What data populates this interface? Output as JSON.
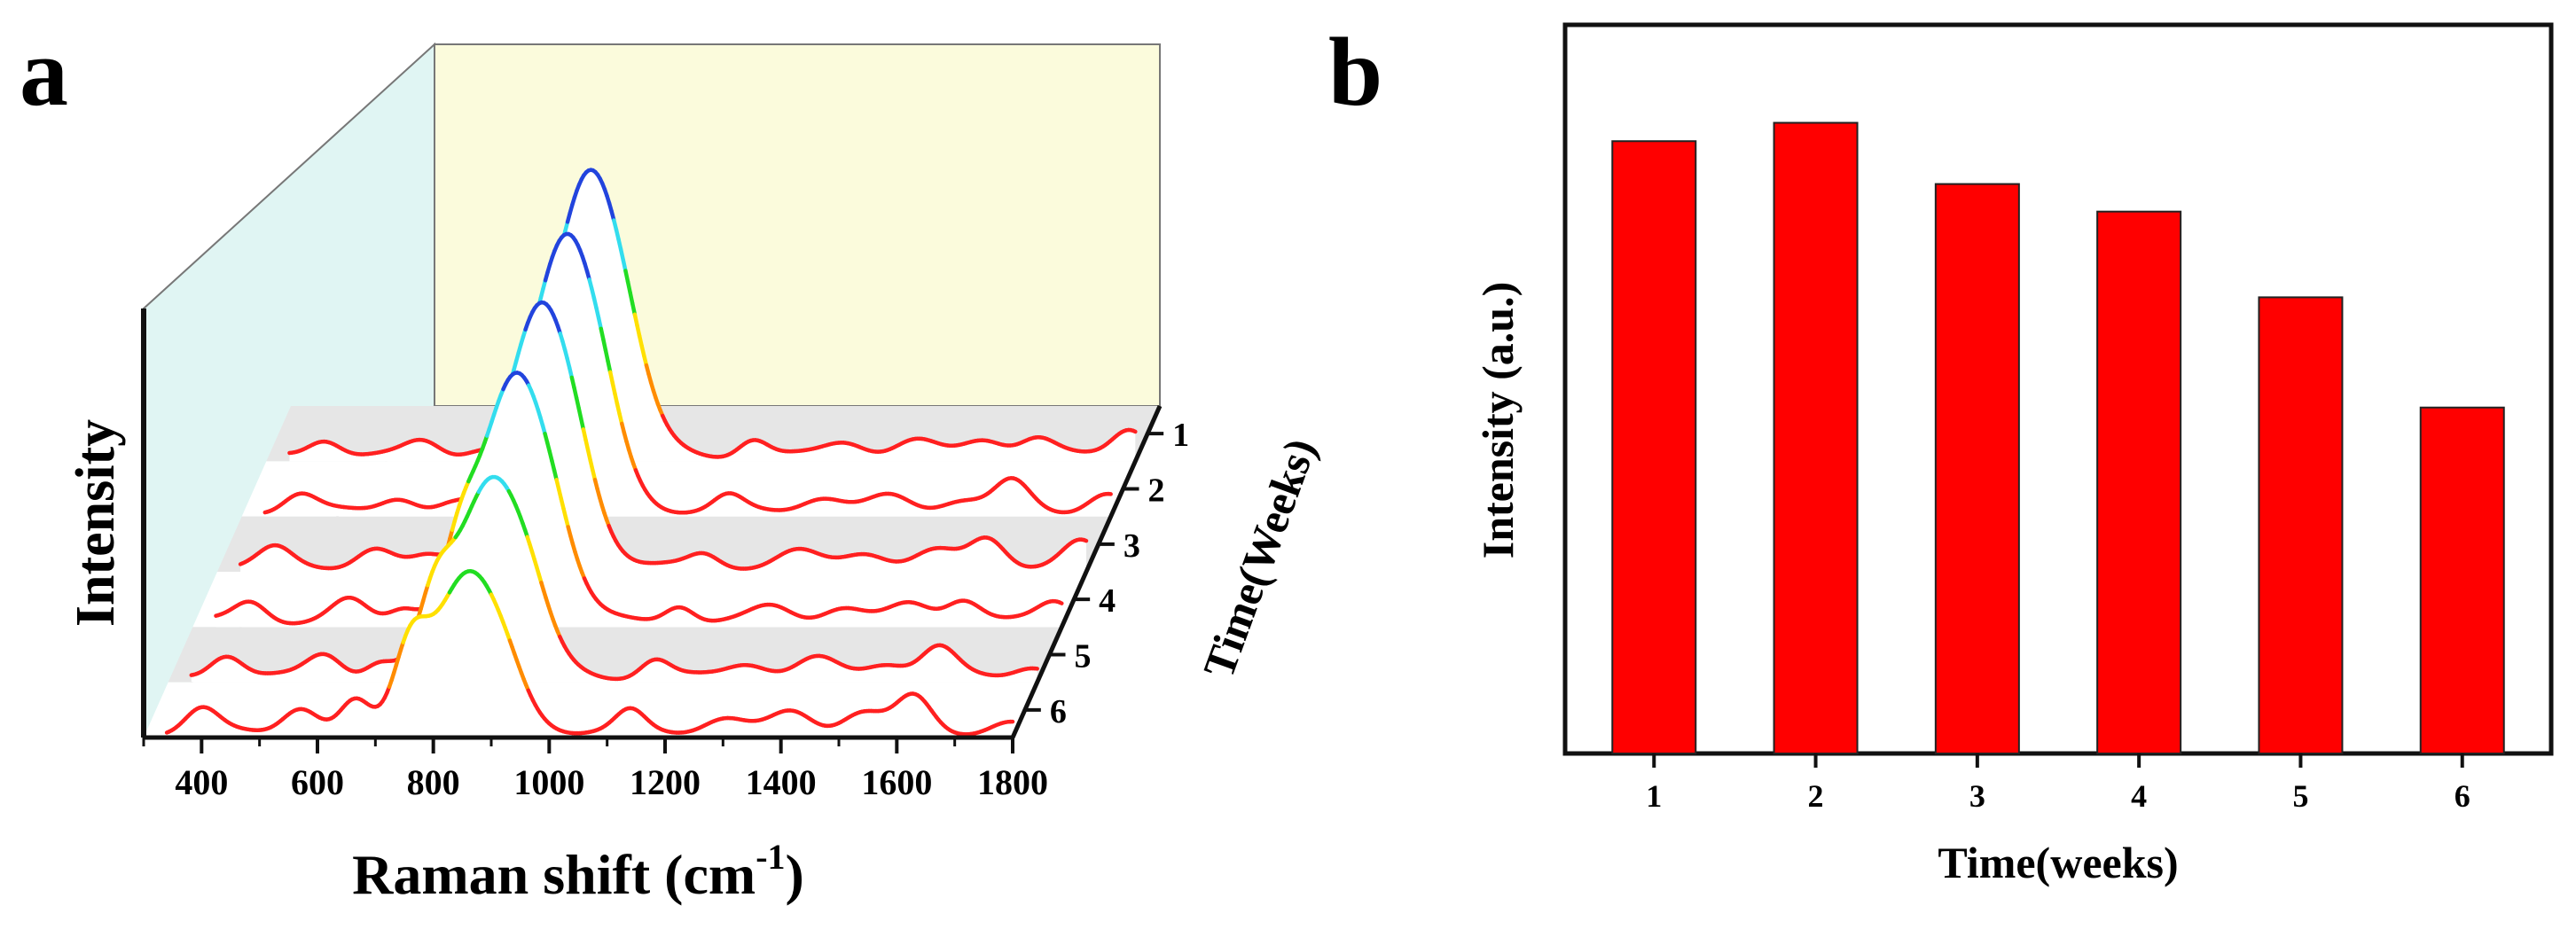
{
  "panels": {
    "a_label": "a",
    "b_label": "b"
  },
  "chart_data": [
    {
      "panel": "a",
      "type": "line",
      "style": "3d-waterfall",
      "xlabel_main": "Raman shift (cm",
      "xlabel_sup": "-1",
      "xlabel_close": ")",
      "ylabel": "Intensity",
      "zlabel": "Time(Weeks)",
      "xlim": [
        300,
        1800
      ],
      "xticks": [
        "400",
        "600",
        "800",
        "1000",
        "1200",
        "1400",
        "1600",
        "1800"
      ],
      "zticks": [
        "1",
        "2",
        "3",
        "4",
        "5",
        "6"
      ],
      "grid": false,
      "wall_colors": {
        "back": "#fbfbdc",
        "side": "#e0f5f3",
        "floor": "#e6e6e6"
      },
      "colormap": [
        "#ff2020",
        "#ff8c00",
        "#ffe000",
        "#22dd22",
        "#33ddee",
        "#2244dd"
      ],
      "peaks": [
        {
          "x": 400,
          "w": 28
        },
        {
          "x": 570,
          "w": 30
        },
        {
          "x": 665,
          "w": 25
        },
        {
          "x": 760,
          "w": 28
        },
        {
          "x": 860,
          "w": 60
        },
        {
          "x": 930,
          "w": 30
        },
        {
          "x": 1140,
          "w": 25
        },
        {
          "x": 1300,
          "w": 35
        },
        {
          "x": 1420,
          "w": 35
        },
        {
          "x": 1540,
          "w": 35
        },
        {
          "x": 1630,
          "w": 30
        },
        {
          "x": 1790,
          "w": 30
        }
      ],
      "series": [
        {
          "name": "1",
          "amps": [
            0.06,
            0.05,
            0.02,
            0.12,
            1.0,
            0.04,
            0.06,
            0.05,
            0.05,
            0.06,
            0.06,
            0.1
          ]
        },
        {
          "name": "2",
          "amps": [
            0.06,
            0.05,
            0.02,
            0.12,
            0.96,
            0.04,
            0.05,
            0.05,
            0.05,
            0.04,
            0.1,
            0.06
          ]
        },
        {
          "name": "3",
          "amps": [
            0.06,
            0.06,
            0.03,
            0.14,
            0.9,
            0.04,
            0.04,
            0.05,
            0.05,
            0.05,
            0.1,
            0.08
          ]
        },
        {
          "name": "4",
          "amps": [
            0.07,
            0.07,
            0.05,
            0.18,
            0.86,
            0.05,
            0.06,
            0.05,
            0.05,
            0.06,
            0.08,
            0.07
          ]
        },
        {
          "name": "5",
          "amps": [
            0.08,
            0.08,
            0.05,
            0.2,
            0.7,
            0.06,
            0.06,
            0.05,
            0.06,
            0.05,
            0.1,
            0.04
          ]
        },
        {
          "name": "6",
          "amps": [
            0.08,
            0.09,
            0.1,
            0.24,
            0.55,
            0.04,
            0.07,
            0.05,
            0.07,
            0.07,
            0.12,
            0.03
          ]
        }
      ]
    },
    {
      "panel": "b",
      "type": "bar",
      "xlabel": "Time(weeks)",
      "ylabel": "Intensity (a.u.)",
      "categories": [
        "1",
        "2",
        "3",
        "4",
        "5",
        "6"
      ],
      "values": [
        1.0,
        1.03,
        0.93,
        0.885,
        0.745,
        0.565
      ],
      "ylim": [
        0,
        1.19
      ],
      "bar_color": "#ff0000",
      "grid": false
    }
  ]
}
